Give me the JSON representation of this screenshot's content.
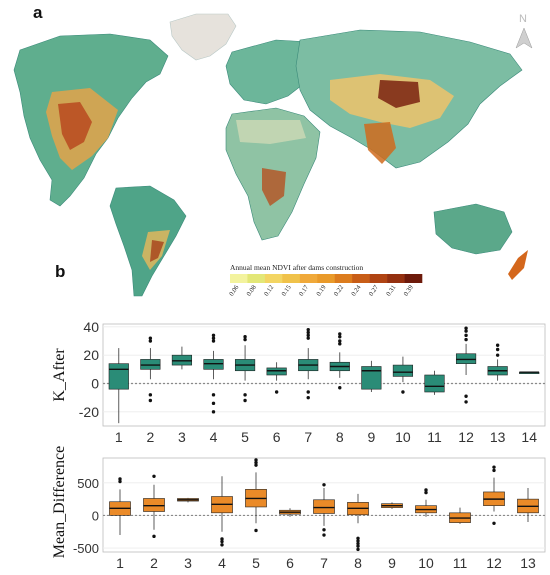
{
  "panel_a": {
    "letter": "a",
    "legend": {
      "title": "Annual mean NDVI after dams construction",
      "ticks": [
        "0.06",
        "0.08",
        "0.12",
        "0.15",
        "0.17",
        "0.19",
        "0.22",
        "0.24",
        "0.27",
        "0.31",
        "0.39"
      ],
      "colors": [
        "#f3f39e",
        "#e3e777",
        "#f3d563",
        "#f0c24a",
        "#f0a93a",
        "#e99a2a",
        "#dc7c1e",
        "#c85d17",
        "#b04413",
        "#94300f",
        "#6d1a0b"
      ]
    },
    "north_label": "N"
  },
  "panel_b": {
    "letter": "b",
    "colors": {
      "k_after": "#2a8c77",
      "mean_difference": "#ea8a28"
    },
    "k_after_ylabel": "K_After",
    "mean_difference_ylabel": "Mean_Difference"
  },
  "chart_data": [
    {
      "type": "box",
      "ylabel": "K_After",
      "ylim": [
        -30,
        42
      ],
      "yticks": [
        -20,
        0,
        20,
        40
      ],
      "reference_line": 0,
      "categories": [
        "1",
        "2",
        "3",
        "4",
        "5",
        "6",
        "7",
        "8",
        "9",
        "10",
        "11",
        "12",
        "13",
        "14"
      ],
      "boxes": [
        {
          "min": -28,
          "q1": -4,
          "median": 10,
          "q3": 14,
          "max": 25,
          "outliers": []
        },
        {
          "min": 3,
          "q1": 10,
          "median": 13,
          "q3": 17,
          "max": 25,
          "outliers": [
            -12,
            -8,
            30,
            32
          ]
        },
        {
          "min": 10,
          "q1": 13,
          "median": 16,
          "q3": 20,
          "max": 26,
          "outliers": []
        },
        {
          "min": 3,
          "q1": 10,
          "median": 14,
          "q3": 17,
          "max": 23,
          "outliers": [
            -20,
            -14,
            -8,
            30,
            32,
            34
          ]
        },
        {
          "min": 2,
          "q1": 9,
          "median": 13,
          "q3": 17,
          "max": 27,
          "outliers": [
            -12,
            -8,
            31,
            33
          ]
        },
        {
          "min": 2,
          "q1": 6,
          "median": 9,
          "q3": 11,
          "max": 15,
          "outliers": [
            -6
          ]
        },
        {
          "min": 3,
          "q1": 9,
          "median": 13,
          "q3": 17,
          "max": 25,
          "outliers": [
            -10,
            -6,
            32,
            34,
            36,
            38
          ]
        },
        {
          "min": 4,
          "q1": 9,
          "median": 12,
          "q3": 15,
          "max": 22,
          "outliers": [
            -3,
            28,
            30,
            33,
            35
          ]
        },
        {
          "min": -6,
          "q1": -4,
          "median": 9,
          "q3": 12,
          "max": 16,
          "outliers": []
        },
        {
          "min": 1,
          "q1": 5,
          "median": 8,
          "q3": 13,
          "max": 19,
          "outliers": [
            -6
          ]
        },
        {
          "min": -8,
          "q1": -6,
          "median": -2,
          "q3": 6,
          "max": 9,
          "outliers": []
        },
        {
          "min": 6,
          "q1": 14,
          "median": 17,
          "q3": 21,
          "max": 28,
          "outliers": [
            -13,
            -9,
            31,
            34,
            37,
            39
          ]
        },
        {
          "min": 2,
          "q1": 6,
          "median": 9,
          "q3": 12,
          "max": 17,
          "outliers": [
            20,
            24,
            27
          ]
        },
        {
          "min": 8,
          "q1": 8,
          "median": 8,
          "q3": 8,
          "max": 8,
          "outliers": []
        }
      ]
    },
    {
      "type": "box",
      "ylabel": "Mean_Difference",
      "ylim": [
        -560,
        880
      ],
      "yticks": [
        -500,
        0,
        500
      ],
      "reference_line": 0,
      "categories": [
        "1",
        "2",
        "3",
        "4",
        "5",
        "6",
        "7",
        "8",
        "9",
        "10",
        "11",
        "12",
        "13"
      ],
      "boxes": [
        {
          "min": -300,
          "q1": 0,
          "median": 110,
          "q3": 210,
          "max": 400,
          "outliers": [
            520,
            560
          ]
        },
        {
          "min": -220,
          "q1": 60,
          "median": 150,
          "q3": 260,
          "max": 470,
          "outliers": [
            -320,
            600
          ]
        },
        {
          "min": 200,
          "q1": 220,
          "median": 240,
          "q3": 260,
          "max": 270,
          "outliers": []
        },
        {
          "min": -250,
          "q1": 40,
          "median": 170,
          "q3": 290,
          "max": 600,
          "outliers": [
            -450,
            -400,
            -360
          ]
        },
        {
          "min": -120,
          "q1": 130,
          "median": 260,
          "q3": 400,
          "max": 660,
          "outliers": [
            -230,
            770,
            810,
            850
          ]
        },
        {
          "min": -20,
          "q1": 20,
          "median": 50,
          "q3": 80,
          "max": 110,
          "outliers": []
        },
        {
          "min": -160,
          "q1": 30,
          "median": 120,
          "q3": 240,
          "max": 420,
          "outliers": [
            -300,
            -220,
            470
          ]
        },
        {
          "min": -120,
          "q1": 10,
          "median": 110,
          "q3": 200,
          "max": 330,
          "outliers": [
            -520,
            -470,
            -430,
            -390,
            -350
          ]
        },
        {
          "min": 100,
          "q1": 120,
          "median": 150,
          "q3": 180,
          "max": 200,
          "outliers": []
        },
        {
          "min": -20,
          "q1": 40,
          "median": 90,
          "q3": 150,
          "max": 240,
          "outliers": [
            350,
            390
          ]
        },
        {
          "min": -130,
          "q1": -110,
          "median": -40,
          "q3": 40,
          "max": 120,
          "outliers": []
        },
        {
          "min": 60,
          "q1": 150,
          "median": 250,
          "q3": 360,
          "max": 580,
          "outliers": [
            -120,
            690,
            740
          ]
        },
        {
          "min": -100,
          "q1": 40,
          "median": 140,
          "q3": 250,
          "max": 420,
          "outliers": []
        }
      ]
    }
  ]
}
